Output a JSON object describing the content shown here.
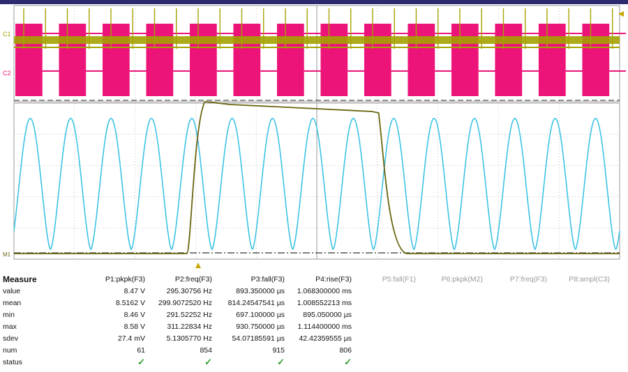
{
  "window": {
    "frame_color": "#2d2a6e"
  },
  "colors": {
    "background": "#ffffff",
    "c1_trace": "#a4a200",
    "c2_trace": "#ec1479",
    "math_trace": "#3cc3e4",
    "step_trace": "#6b6410",
    "grid": "#9a9a9a",
    "marker": "#c8a800",
    "check": "#2e9e2e"
  },
  "channels": {
    "c1_label": "C1",
    "c2_label": "C2",
    "ground_marker_label": "M1"
  },
  "waveforms": {
    "digital_period_divisions": 0.72,
    "sine_cycles_visible": 15,
    "step_rise_division": 4.7,
    "step_fall_division": 10.6,
    "total_divisions": 10
  },
  "measure": {
    "title": "Measure",
    "columns": [
      "P1:pkpk(F3)",
      "P2:freq(F3)",
      "P3:fall(F3)",
      "P4:rise(F3)",
      "P5:fall(F1)",
      "P6:pkpk(M2)",
      "P7:freq(F3)",
      "P8:ampl(C3)"
    ],
    "rows": [
      {
        "label": "value",
        "cells": [
          "8.47 V",
          "295.30756 Hz",
          "893.350000 µs",
          "1.068300000 ms"
        ]
      },
      {
        "label": "mean",
        "cells": [
          "8.5162 V",
          "299.9072520 Hz",
          "814.24547541 µs",
          "1.008552213 ms"
        ]
      },
      {
        "label": "min",
        "cells": [
          "8.46 V",
          "291.52252 Hz",
          "697.100000 µs",
          "895.050000 µs"
        ]
      },
      {
        "label": "max",
        "cells": [
          "8.58 V",
          "311.22834 Hz",
          "930.750000 µs",
          "1.114400000 ms"
        ]
      },
      {
        "label": "sdev",
        "cells": [
          "27.4 mV",
          "5.1305770 Hz",
          "54.07185591 µs",
          "42.42359555 µs"
        ]
      },
      {
        "label": "num",
        "cells": [
          "61",
          "854",
          "915",
          "806"
        ]
      },
      {
        "label": "status",
        "cells": [
          "✓",
          "✓",
          "✓",
          "✓"
        ]
      }
    ]
  }
}
